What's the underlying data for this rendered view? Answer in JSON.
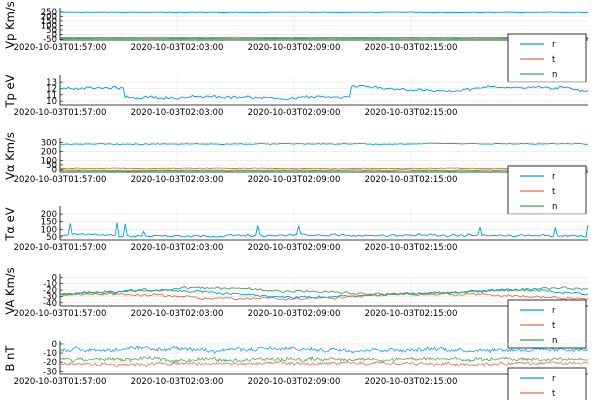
{
  "chart_data": [
    {
      "type": "line",
      "ylabel": "Vp Km/s",
      "ylim": [
        -60,
        270
      ],
      "yticks": [
        250,
        200,
        150,
        100,
        50,
        0,
        -50
      ],
      "legend": "bottom-right",
      "series": [
        {
          "name": "r",
          "color": "#009af9",
          "base": 245,
          "noise": 3,
          "drift": 0,
          "spike": 0
        },
        {
          "name": "t",
          "color": "#e26f46",
          "base": -32,
          "noise": 2,
          "drift": 0,
          "spike": 0
        },
        {
          "name": "n",
          "color": "#3da44d",
          "base": -42,
          "noise": 2,
          "drift": 0,
          "spike": 0
        }
      ]
    },
    {
      "type": "line",
      "ylabel": "Tp eV",
      "ylim": [
        9.4,
        13.8
      ],
      "yticks": [
        13,
        12,
        11,
        10
      ],
      "legend": "none",
      "series": [
        {
          "name": "r",
          "color": "#009af9",
          "base": 11.2,
          "noise": 0.35,
          "drift": 0,
          "spike": 0,
          "profile": "tp"
        }
      ]
    },
    {
      "type": "line",
      "ylabel": "Vα Km/s",
      "ylim": [
        -30,
        330
      ],
      "yticks": [
        300,
        200,
        100,
        50,
        0
      ],
      "legend": "bottom-right",
      "series": [
        {
          "name": "r",
          "color": "#009af9",
          "base": 285,
          "noise": 8,
          "drift": 0,
          "spike": 0
        },
        {
          "name": "t",
          "color": "#e26f46",
          "base": 10,
          "noise": 6,
          "drift": 0,
          "spike": 0
        },
        {
          "name": "n",
          "color": "#3da44d",
          "base": -12,
          "noise": 6,
          "drift": 0,
          "spike": 0
        }
      ]
    },
    {
      "type": "line",
      "ylabel": "Tα eV",
      "ylim": [
        30,
        240
      ],
      "yticks": [
        200,
        150,
        100,
        50
      ],
      "legend": "none",
      "series": [
        {
          "name": "r",
          "color": "#009af9",
          "base": 60,
          "noise": 12,
          "drift": 0,
          "spike": 90,
          "profile": "ta"
        }
      ]
    },
    {
      "type": "line",
      "ylabel": "VA Km/s",
      "ylim": [
        -45,
        2
      ],
      "yticks": [
        0,
        -10,
        -20,
        -30,
        -40
      ],
      "legend": "bottom-right",
      "series": [
        {
          "name": "r",
          "color": "#009af9",
          "base": -26,
          "noise": 3,
          "drift": 5,
          "spike": 0
        },
        {
          "name": "t",
          "color": "#e26f46",
          "base": -30,
          "noise": 3,
          "drift": 4,
          "spike": 0
        },
        {
          "name": "n",
          "color": "#3da44d",
          "base": -22,
          "noise": 3,
          "drift": -5,
          "spike": 0
        }
      ]
    },
    {
      "type": "line",
      "ylabel": "B nT",
      "ylim": [
        -33,
        1
      ],
      "yticks": [
        0,
        -10,
        -20,
        -30
      ],
      "legend": "bottom-right",
      "series": [
        {
          "name": "r",
          "color": "#009af9",
          "base": -6,
          "noise": 3,
          "drift": 0,
          "spike": 0,
          "dense": true
        },
        {
          "name": "t",
          "color": "#e26f46",
          "base": -22,
          "noise": 2.5,
          "drift": 0,
          "spike": 0,
          "dense": true
        },
        {
          "name": "n",
          "color": "#3da44d",
          "base": -17,
          "noise": 3,
          "drift": 0,
          "spike": 0,
          "dense": true
        }
      ]
    }
  ],
  "x_time_labels": [
    "2020-10-03T01:57:00",
    "2020-10-03T02:03:00",
    "2020-10-03T02:09:00",
    "2020-10-03T02:15:00"
  ],
  "legend_labels": [
    "r",
    "t",
    "n"
  ]
}
